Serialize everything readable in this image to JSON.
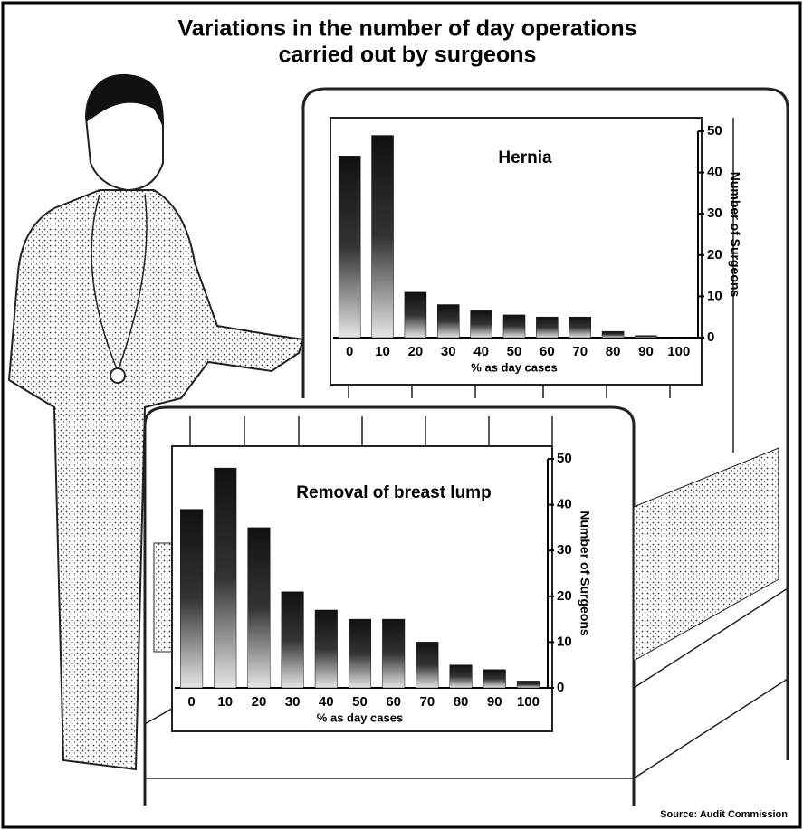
{
  "title": "Variations in the number of day operations carried out by surgeons",
  "source": "Source: Audit Commission",
  "chart_data": [
    {
      "type": "bar",
      "title": "Hernia",
      "categories": [
        "0",
        "10",
        "20",
        "30",
        "40",
        "50",
        "60",
        "70",
        "80",
        "90",
        "100"
      ],
      "values": [
        44,
        49,
        11,
        8,
        6.5,
        5.5,
        5,
        5,
        1.5,
        0.5,
        0
      ],
      "color": "#111111",
      "xlabel": "% as day cases",
      "ylabel": "Number of Surgeons",
      "ylim": [
        0,
        50
      ],
      "yticks": [
        0,
        10,
        20,
        30,
        40,
        50
      ]
    },
    {
      "type": "bar",
      "title": "Removal of breast lump",
      "categories": [
        "0",
        "10",
        "20",
        "30",
        "40",
        "50",
        "60",
        "70",
        "80",
        "90",
        "100"
      ],
      "values": [
        39,
        48,
        35,
        21,
        17,
        15,
        15,
        10,
        5,
        4,
        1.5
      ],
      "color": "#111111",
      "xlabel": "% as day cases",
      "ylabel": "Number of Surgeons",
      "ylim": [
        0,
        50
      ],
      "yticks": [
        0,
        10,
        20,
        30,
        40,
        50
      ]
    }
  ]
}
